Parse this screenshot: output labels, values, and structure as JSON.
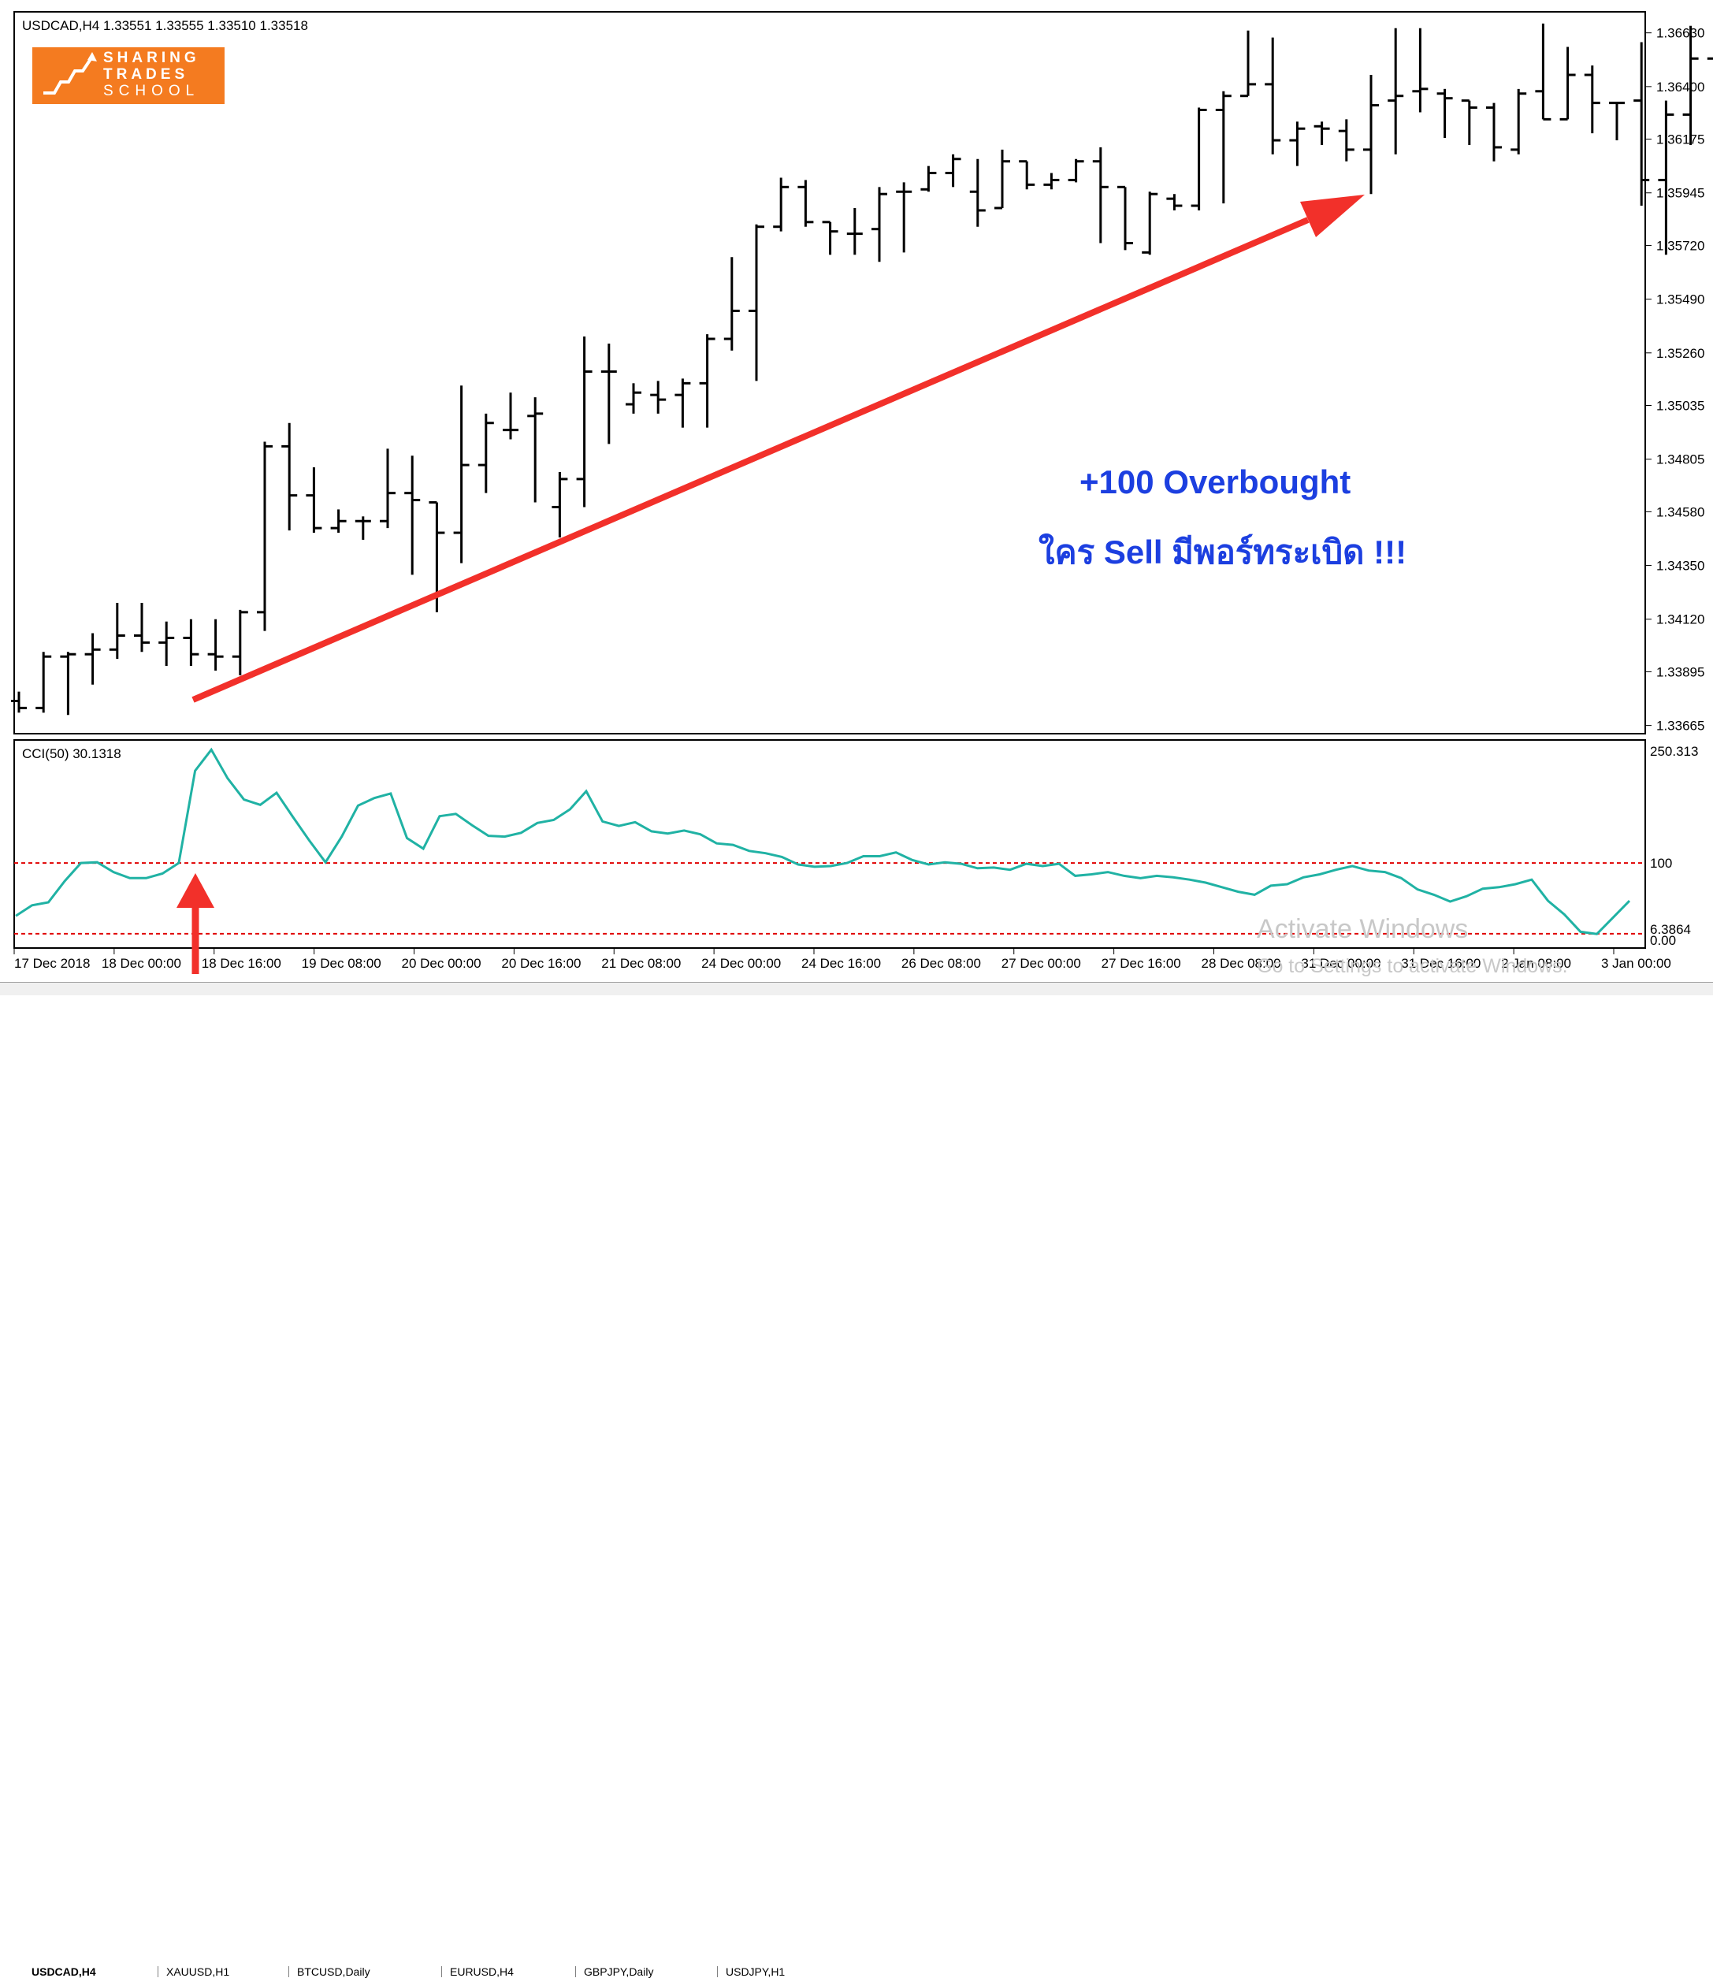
{
  "chart_info": {
    "symbol_line": "USDCAD,H4  1.33551 1.33555 1.33510 1.33518",
    "indicator_line": "CCI(50) 30.1318"
  },
  "logo": {
    "line1": "SHARING",
    "line2": "TRADES",
    "line3": "SCHOOL"
  },
  "annotations": {
    "line1": "+100 Overbought",
    "line2": "ใคร Sell มีพอร์ทระเบิด !!!"
  },
  "watermark": {
    "line1": "Activate Windows",
    "line2": "Go to Settings to activate Windows."
  },
  "tabs": [
    "USDCAD,H4",
    "XAUUSD,H1",
    "BTCUSD,Daily",
    "EURUSD,H4",
    "GBPJPY,Daily",
    "USDJPY,H1"
  ],
  "colors": {
    "cci_line": "#20b2a4",
    "level_line": "#e00000",
    "arrow": "#f2302a",
    "annotation": "#1c3fe0",
    "logo_bg": "#f47b20"
  },
  "chart_data": [
    {
      "type": "ohlc",
      "price_ticks": [
        "1.36630",
        "1.36400",
        "1.36175",
        "1.35945",
        "1.35720",
        "1.35490",
        "1.35260",
        "1.35035",
        "1.34805",
        "1.34580",
        "1.34350",
        "1.34120",
        "1.33895",
        "1.33665"
      ],
      "ylim": [
        1.3363,
        1.3672
      ],
      "time_labels": [
        "17 Dec 2018",
        "18 Dec 00:00",
        "18 Dec 16:00",
        "19 Dec 08:00",
        "20 Dec 00:00",
        "20 Dec 16:00",
        "21 Dec 08:00",
        "24 Dec 00:00",
        "24 Dec 16:00",
        "26 Dec 08:00",
        "27 Dec 00:00",
        "27 Dec 16:00",
        "28 Dec 08:00",
        "31 Dec 00:00",
        "31 Dec 16:00",
        "2 Jan 08:00",
        "3 Jan 00:00"
      ],
      "bars": [
        [
          1.3377,
          1.3381,
          1.3372,
          1.3374
        ],
        [
          1.3374,
          1.3398,
          1.3372,
          1.3396
        ],
        [
          1.3396,
          1.3398,
          1.3371,
          1.3397
        ],
        [
          1.3397,
          1.3406,
          1.3384,
          1.3399
        ],
        [
          1.3399,
          1.3419,
          1.3395,
          1.3405
        ],
        [
          1.3405,
          1.3419,
          1.3398,
          1.3402
        ],
        [
          1.3402,
          1.3411,
          1.3392,
          1.3404
        ],
        [
          1.3404,
          1.3412,
          1.3392,
          1.3397
        ],
        [
          1.3397,
          1.3412,
          1.339,
          1.3396
        ],
        [
          1.3396,
          1.3416,
          1.3388,
          1.3415
        ],
        [
          1.3415,
          1.3488,
          1.3407,
          1.3486
        ],
        [
          1.3486,
          1.3496,
          1.345,
          1.3465
        ],
        [
          1.3465,
          1.3477,
          1.3449,
          1.3451
        ],
        [
          1.3451,
          1.3459,
          1.3449,
          1.3454
        ],
        [
          1.3454,
          1.3456,
          1.3446,
          1.3454
        ],
        [
          1.3454,
          1.3485,
          1.3451,
          1.3466
        ],
        [
          1.3466,
          1.3482,
          1.3431,
          1.3463
        ],
        [
          1.3462,
          1.3462,
          1.3415,
          1.3449
        ],
        [
          1.3449,
          1.3512,
          1.3436,
          1.3478
        ],
        [
          1.3478,
          1.35,
          1.3466,
          1.3496
        ],
        [
          1.3493,
          1.3509,
          1.3489,
          1.3493
        ],
        [
          1.3499,
          1.3507,
          1.3462,
          1.35
        ],
        [
          1.346,
          1.3475,
          1.3447,
          1.3472
        ],
        [
          1.3472,
          1.3533,
          1.346,
          1.3518
        ],
        [
          1.3518,
          1.353,
          1.3487,
          1.3518
        ],
        [
          1.3504,
          1.3513,
          1.35,
          1.3509
        ],
        [
          1.3508,
          1.3514,
          1.35,
          1.3506
        ],
        [
          1.3508,
          1.3515,
          1.3494,
          1.3513
        ],
        [
          1.3513,
          1.3534,
          1.3494,
          1.3532
        ],
        [
          1.3532,
          1.3567,
          1.3527,
          1.3544
        ],
        [
          1.3544,
          1.3581,
          1.3514,
          1.358
        ],
        [
          1.358,
          1.3601,
          1.3578,
          1.3597
        ],
        [
          1.3597,
          1.36,
          1.358,
          1.3582
        ],
        [
          1.3582,
          1.3582,
          1.3568,
          1.3578
        ],
        [
          1.3577,
          1.3588,
          1.3568,
          1.3577
        ],
        [
          1.3579,
          1.3597,
          1.3565,
          1.3594
        ],
        [
          1.3595,
          1.3599,
          1.3569,
          1.3595
        ],
        [
          1.3596,
          1.3606,
          1.3595,
          1.3603
        ],
        [
          1.3603,
          1.3611,
          1.3597,
          1.3609
        ],
        [
          1.3595,
          1.3609,
          1.358,
          1.3587
        ],
        [
          1.3588,
          1.3613,
          1.3588,
          1.3608
        ],
        [
          1.3608,
          1.3608,
          1.3596,
          1.3598
        ],
        [
          1.3598,
          1.3603,
          1.3596,
          1.36
        ],
        [
          1.36,
          1.3609,
          1.3599,
          1.3608
        ],
        [
          1.3608,
          1.3614,
          1.3573,
          1.3597
        ],
        [
          1.3597,
          1.3597,
          1.357,
          1.3573
        ],
        [
          1.3569,
          1.3595,
          1.3568,
          1.3594
        ],
        [
          1.3592,
          1.3594,
          1.3587,
          1.3589
        ],
        [
          1.3589,
          1.3631,
          1.3587,
          1.363
        ],
        [
          1.363,
          1.3638,
          1.359,
          1.3636
        ],
        [
          1.3636,
          1.3664,
          1.3636,
          1.3641
        ],
        [
          1.3641,
          1.3661,
          1.3611,
          1.3617
        ],
        [
          1.3617,
          1.3625,
          1.3606,
          1.3622
        ],
        [
          1.3623,
          1.3625,
          1.3615,
          1.3622
        ],
        [
          1.3621,
          1.3626,
          1.3608,
          1.3613
        ],
        [
          1.3613,
          1.3645,
          1.3594,
          1.3632
        ],
        [
          1.3634,
          1.3665,
          1.3611,
          1.3636
        ],
        [
          1.3638,
          1.3665,
          1.3629,
          1.3639
        ],
        [
          1.3637,
          1.3639,
          1.3618,
          1.3635
        ],
        [
          1.3634,
          1.3634,
          1.3615,
          1.3631
        ],
        [
          1.3631,
          1.3633,
          1.3608,
          1.3614
        ],
        [
          1.3613,
          1.3639,
          1.3611,
          1.3637
        ],
        [
          1.3638,
          1.3667,
          1.3626,
          1.3626
        ],
        [
          1.3626,
          1.3657,
          1.3626,
          1.3645
        ],
        [
          1.3645,
          1.3649,
          1.362,
          1.3633
        ],
        [
          1.3633,
          1.3633,
          1.3617,
          1.3633
        ],
        [
          1.3634,
          1.3659,
          1.3589,
          1.36
        ],
        [
          1.36,
          1.3634,
          1.3568,
          1.3628
        ],
        [
          1.3628,
          1.3666,
          1.3615,
          1.3652
        ],
        [
          1.3652,
          1.3652,
          1.357,
          1.3581
        ],
        [
          1.3581,
          1.3597,
          1.3573,
          1.3581
        ],
        [
          1.3574,
          1.3658,
          1.3574,
          1.362
        ]
      ]
    },
    {
      "type": "line",
      "name": "CCI(50)",
      "value_label": "30.1318",
      "y_ticks": [
        "250.313",
        "100",
        "6.3864",
        "0.00"
      ],
      "ylim": [
        0,
        250.313
      ],
      "levels": [
        100,
        6.3864
      ],
      "values": [
        30,
        44,
        48,
        76,
        100,
        101,
        88,
        80,
        80,
        86,
        100,
        222,
        250,
        212,
        184,
        177,
        193,
        161,
        130,
        101,
        135,
        176,
        186,
        192,
        133,
        119,
        162,
        165,
        150,
        136,
        135,
        140,
        153,
        157,
        171,
        195,
        155,
        149,
        154,
        142,
        139,
        143,
        138,
        126,
        124,
        116,
        113,
        108,
        98,
        95,
        96,
        100,
        109,
        109,
        114,
        104,
        98,
        101,
        99,
        93,
        94,
        91,
        99,
        96,
        99,
        83,
        85,
        88,
        83,
        80,
        83,
        81,
        78,
        74,
        68,
        62,
        58,
        70,
        72,
        81,
        85,
        91,
        96,
        90,
        88,
        80,
        65,
        58,
        49,
        56,
        66,
        68,
        72,
        78,
        50,
        32,
        9,
        6,
        28,
        50
      ]
    }
  ]
}
